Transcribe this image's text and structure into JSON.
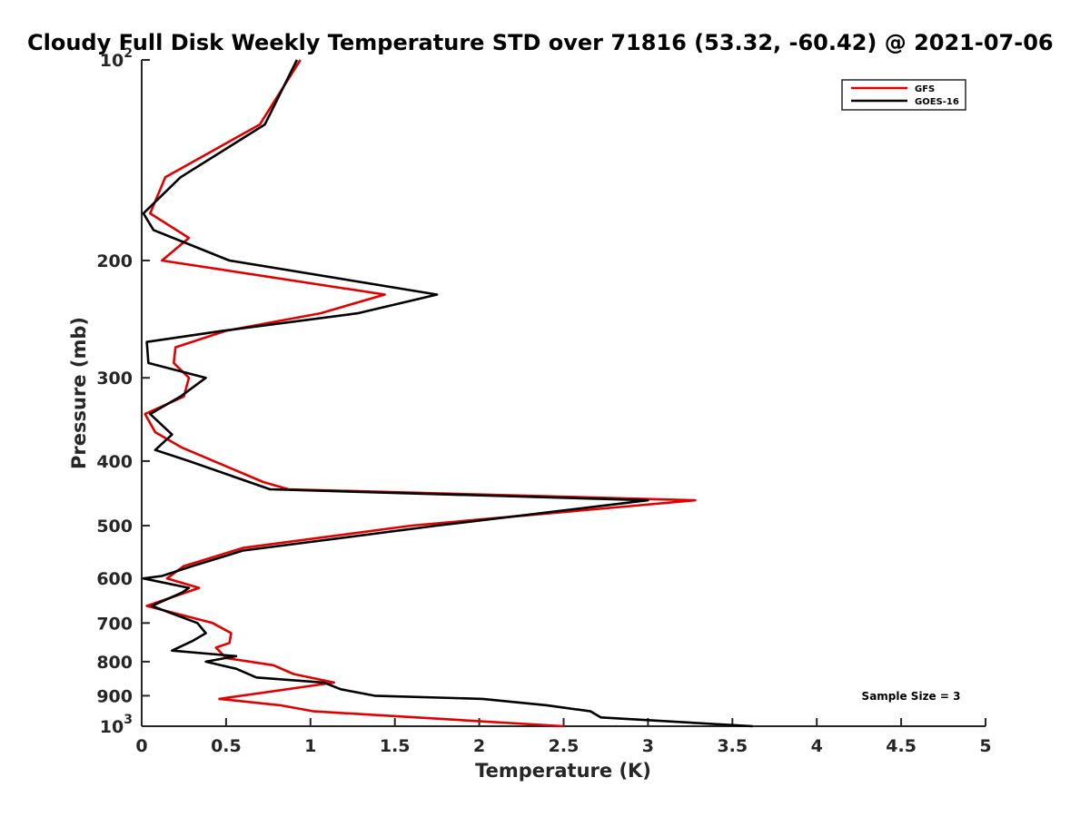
{
  "chart_data": {
    "type": "line",
    "title": "Cloudy Full Disk Weekly Temperature STD over 71816 (53.32, -60.42) @ 2021-07-06",
    "xlabel": "Temperature (K)",
    "ylabel": "Pressure (mb)",
    "xlim": [
      0,
      5
    ],
    "ylim": [
      1000,
      100
    ],
    "yscale": "log",
    "y_reversed": true,
    "xticks": [
      {
        "value": 0,
        "label": "0"
      },
      {
        "value": 0.5,
        "label": "0.5"
      },
      {
        "value": 1,
        "label": "1"
      },
      {
        "value": 1.5,
        "label": "1.5"
      },
      {
        "value": 2,
        "label": "2"
      },
      {
        "value": 2.5,
        "label": "2.5"
      },
      {
        "value": 3,
        "label": "3"
      },
      {
        "value": 3.5,
        "label": "3.5"
      },
      {
        "value": 4,
        "label": "4"
      },
      {
        "value": 4.5,
        "label": "4.5"
      },
      {
        "value": 5,
        "label": "5"
      }
    ],
    "yticks": [
      {
        "value": 100,
        "base": "10",
        "exp": "2"
      },
      {
        "value": 200,
        "base": "200",
        "exp": ""
      },
      {
        "value": 300,
        "base": "300",
        "exp": ""
      },
      {
        "value": 400,
        "base": "400",
        "exp": ""
      },
      {
        "value": 500,
        "base": "500",
        "exp": ""
      },
      {
        "value": 600,
        "base": "600",
        "exp": ""
      },
      {
        "value": 700,
        "base": "700",
        "exp": ""
      },
      {
        "value": 800,
        "base": "800",
        "exp": ""
      },
      {
        "value": 900,
        "base": "900",
        "exp": ""
      },
      {
        "value": 1000,
        "base": "10",
        "exp": "3"
      }
    ],
    "legend_position": "top-right",
    "annotation": "Sample Size = 3",
    "series": [
      {
        "name": "GFS",
        "color": "#e00000",
        "points": [
          {
            "x": 0.94,
            "y": 100
          },
          {
            "x": 0.7,
            "y": 125
          },
          {
            "x": 0.14,
            "y": 150
          },
          {
            "x": 0.05,
            "y": 170
          },
          {
            "x": 0.28,
            "y": 185
          },
          {
            "x": 0.12,
            "y": 200
          },
          {
            "x": 1.44,
            "y": 225
          },
          {
            "x": 1.06,
            "y": 240
          },
          {
            "x": 0.5,
            "y": 255
          },
          {
            "x": 0.2,
            "y": 270
          },
          {
            "x": 0.19,
            "y": 285
          },
          {
            "x": 0.28,
            "y": 300
          },
          {
            "x": 0.25,
            "y": 320
          },
          {
            "x": 0.02,
            "y": 340
          },
          {
            "x": 0.08,
            "y": 362
          },
          {
            "x": 0.24,
            "y": 382
          },
          {
            "x": 0.72,
            "y": 430
          },
          {
            "x": 0.87,
            "y": 441
          },
          {
            "x": 3.28,
            "y": 458
          },
          {
            "x": 1.6,
            "y": 500
          },
          {
            "x": 0.6,
            "y": 540
          },
          {
            "x": 0.25,
            "y": 575
          },
          {
            "x": 0.15,
            "y": 600
          },
          {
            "x": 0.34,
            "y": 620
          },
          {
            "x": 0.03,
            "y": 660
          },
          {
            "x": 0.42,
            "y": 700
          },
          {
            "x": 0.53,
            "y": 725
          },
          {
            "x": 0.52,
            "y": 750
          },
          {
            "x": 0.44,
            "y": 762
          },
          {
            "x": 0.5,
            "y": 790
          },
          {
            "x": 0.78,
            "y": 810
          },
          {
            "x": 0.9,
            "y": 835
          },
          {
            "x": 1.14,
            "y": 860
          },
          {
            "x": 0.46,
            "y": 910
          },
          {
            "x": 0.82,
            "y": 930
          },
          {
            "x": 1.02,
            "y": 950
          },
          {
            "x": 2.5,
            "y": 1000
          }
        ]
      },
      {
        "name": "GOES-16",
        "color": "#000000",
        "points": [
          {
            "x": 0.92,
            "y": 100
          },
          {
            "x": 0.73,
            "y": 125
          },
          {
            "x": 0.23,
            "y": 150
          },
          {
            "x": 0.01,
            "y": 170
          },
          {
            "x": 0.07,
            "y": 180
          },
          {
            "x": 0.52,
            "y": 200
          },
          {
            "x": 1.75,
            "y": 225
          },
          {
            "x": 1.28,
            "y": 240
          },
          {
            "x": 0.48,
            "y": 255
          },
          {
            "x": 0.03,
            "y": 265
          },
          {
            "x": 0.04,
            "y": 285
          },
          {
            "x": 0.38,
            "y": 300
          },
          {
            "x": 0.23,
            "y": 320
          },
          {
            "x": 0.05,
            "y": 340
          },
          {
            "x": 0.18,
            "y": 365
          },
          {
            "x": 0.08,
            "y": 385
          },
          {
            "x": 0.28,
            "y": 400
          },
          {
            "x": 0.76,
            "y": 441
          },
          {
            "x": 3.0,
            "y": 458
          },
          {
            "x": 1.75,
            "y": 500
          },
          {
            "x": 0.6,
            "y": 545
          },
          {
            "x": 0.3,
            "y": 575
          },
          {
            "x": 0.12,
            "y": 595
          },
          {
            "x": 0.01,
            "y": 600
          },
          {
            "x": 0.28,
            "y": 620
          },
          {
            "x": 0.24,
            "y": 630
          },
          {
            "x": 0.06,
            "y": 660
          },
          {
            "x": 0.33,
            "y": 700
          },
          {
            "x": 0.38,
            "y": 725
          },
          {
            "x": 0.3,
            "y": 745
          },
          {
            "x": 0.18,
            "y": 770
          },
          {
            "x": 0.56,
            "y": 785
          },
          {
            "x": 0.38,
            "y": 800
          },
          {
            "x": 0.56,
            "y": 820
          },
          {
            "x": 0.68,
            "y": 845
          },
          {
            "x": 1.08,
            "y": 860
          },
          {
            "x": 1.18,
            "y": 880
          },
          {
            "x": 1.38,
            "y": 900
          },
          {
            "x": 2.02,
            "y": 910
          },
          {
            "x": 2.4,
            "y": 930
          },
          {
            "x": 2.66,
            "y": 950
          },
          {
            "x": 2.72,
            "y": 970
          },
          {
            "x": 3.62,
            "y": 1000
          }
        ]
      }
    ]
  }
}
